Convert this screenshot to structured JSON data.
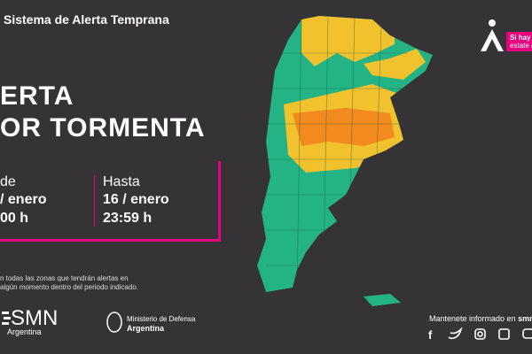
{
  "header": {
    "system": "Sistema de Alerta Temprana"
  },
  "alert": {
    "title_line1": "ERTA",
    "title_line2": "OR TORMENTA"
  },
  "period": {
    "from": {
      "label": "de",
      "date": "/ enero",
      "time": "00 h"
    },
    "to": {
      "label": "Hasta",
      "date": "16 / enero",
      "time": "23:59 h"
    }
  },
  "note": [
    "n todas las zonas que tendrán alertas en",
    "algún momento dentro del periodo indicado."
  ],
  "tip": [
    "Si hay a",
    "estate a"
  ],
  "footer": {
    "smn": "SMN",
    "smn_country": "Argentina",
    "ministry": "Ministerio de Defensa",
    "ministry_country": "Argentina",
    "follow": "Mantenete informado en",
    "site": "smn"
  }
}
